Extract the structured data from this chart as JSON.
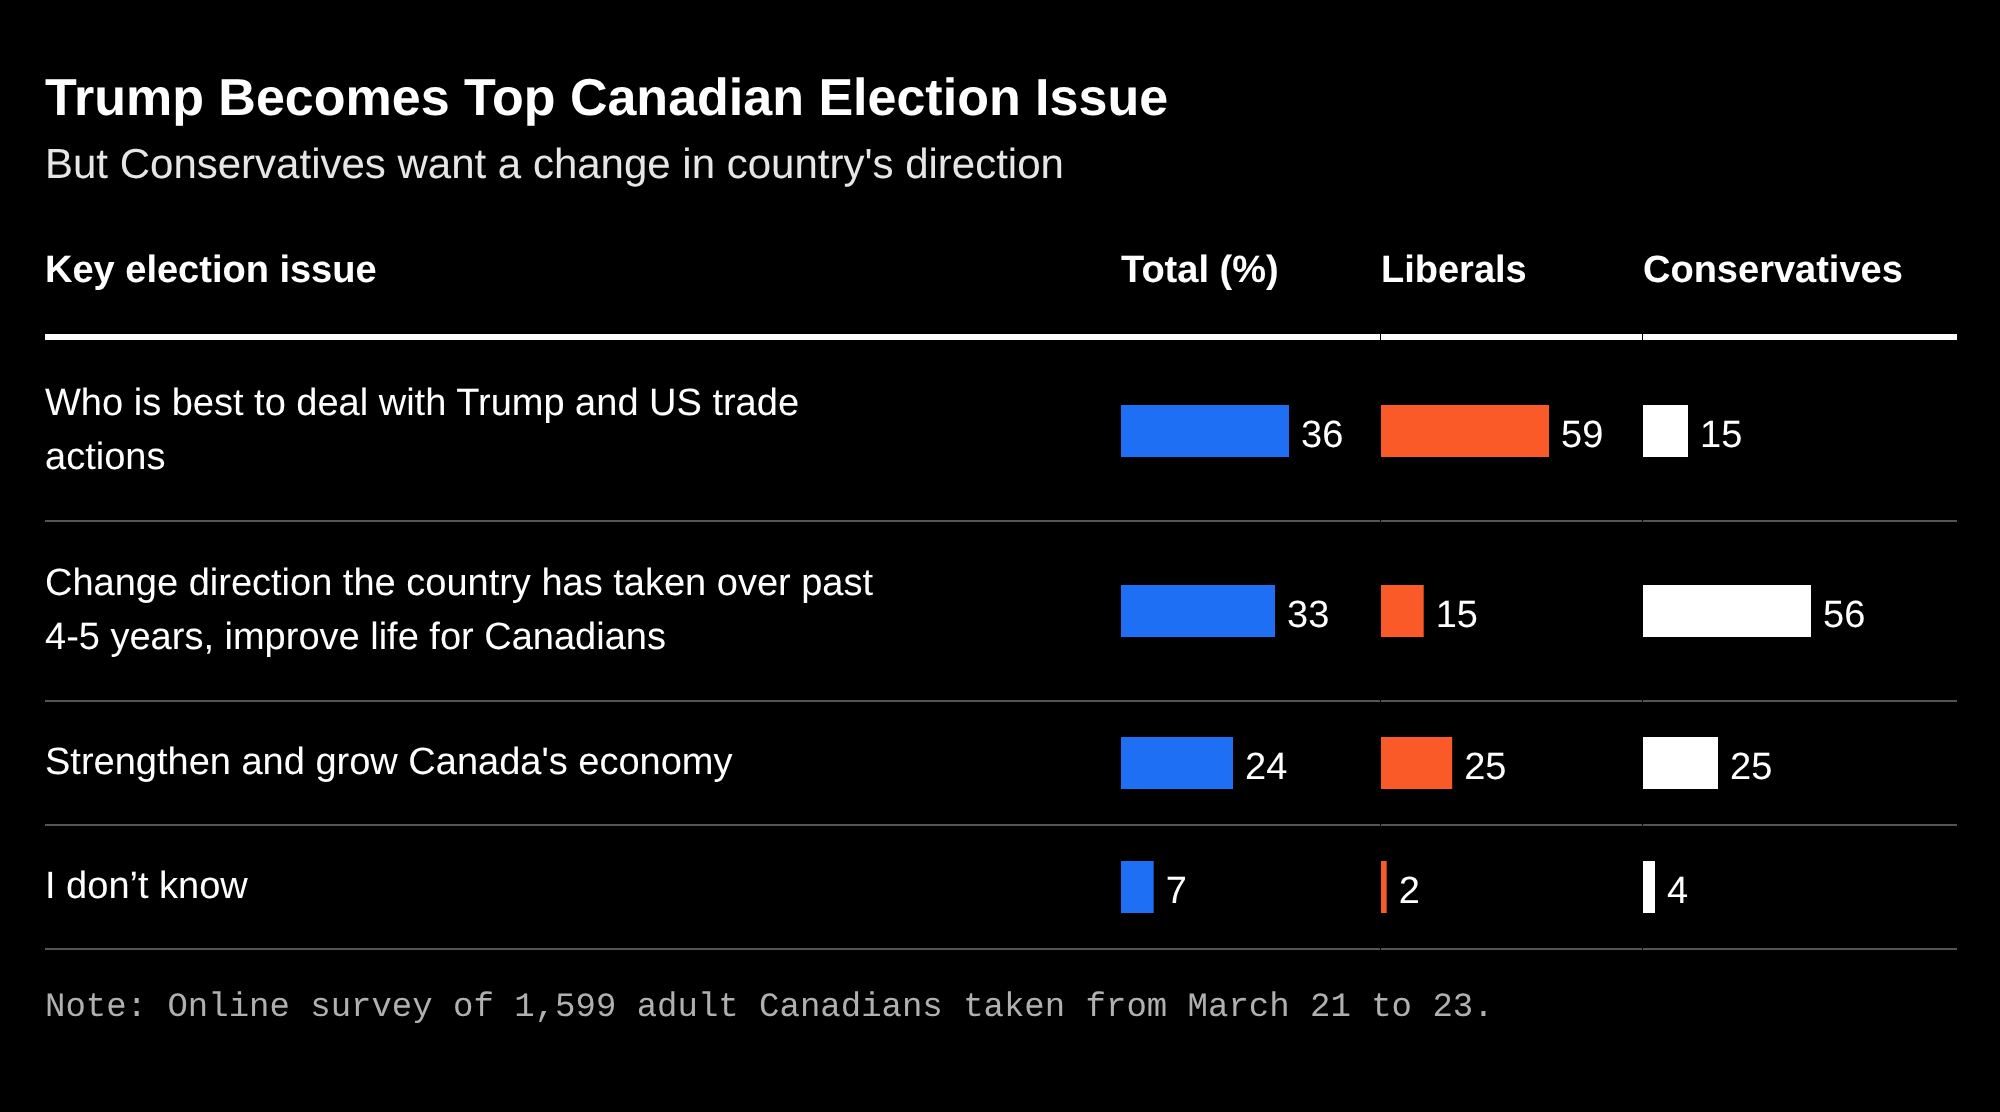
{
  "chart_data": [
    {
      "type": "bar",
      "orientation": "horizontal",
      "title": "Trump Becomes Top Canadian Election Issue",
      "subtitle": "But Conservatives want a change in country's direction",
      "ylabel": "Key election issue",
      "categories": [
        "Who is best to deal with Trump and US trade actions",
        "Change direction the country has taken over past 4-5 years, improve life for Canadians",
        "Strengthen and grow Canada's economy",
        "I don’t know"
      ],
      "series": [
        {
          "name": "Total (%)",
          "color": "#1f6ff5",
          "values": [
            36,
            33,
            24,
            7
          ]
        }
      ],
      "data_labels": true,
      "tick_labels": "y",
      "annotations": [
        "Note: Online survey of 1,599 adult Canadians taken from March 21 to 23."
      ]
    },
    {
      "type": "bar",
      "orientation": "horizontal",
      "categories": [
        "Who is best to deal with Trump and US trade actions",
        "Change direction the country has taken over past 4-5 years, improve life for Canadians",
        "Strengthen and grow Canada's economy",
        "I don’t know"
      ],
      "series": [
        {
          "name": "Liberals",
          "color": "#fa5a28",
          "values": [
            59,
            15,
            25,
            2
          ]
        }
      ],
      "data_labels": true,
      "tick_labels": false
    },
    {
      "type": "bar",
      "orientation": "horizontal",
      "categories": [
        "Who is best to deal with Trump and US trade actions",
        "Change direction the country has taken over past 4-5 years, improve life for Canadians",
        "Strengthen and grow Canada's economy",
        "I don’t know"
      ],
      "series": [
        {
          "name": "Conservatives",
          "color": "#ffffff",
          "values": [
            15,
            56,
            25,
            4
          ]
        }
      ],
      "data_labels": true,
      "tick_labels": false
    }
  ]
}
